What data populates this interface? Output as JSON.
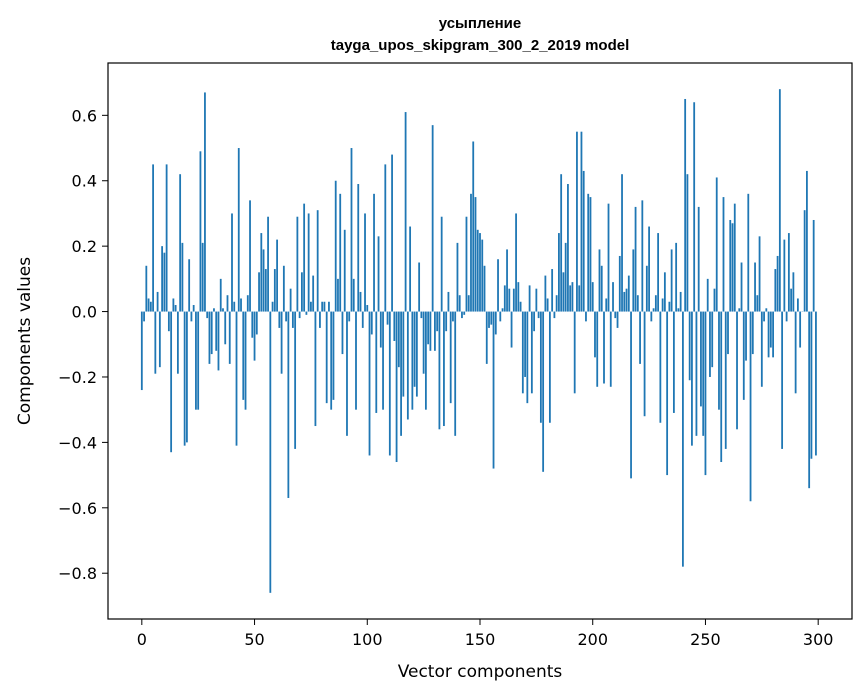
{
  "chart_data": {
    "type": "bar",
    "title": "усыпление",
    "subtitle": "tayga_upos_skipgram_300_2_2019 model",
    "xlabel": "Vector components",
    "ylabel": "Components values",
    "xlim": [
      -15,
      315
    ],
    "ylim": [
      -0.94,
      0.76
    ],
    "xticks": [
      0,
      50,
      100,
      150,
      200,
      250,
      300
    ],
    "yticks": [
      -0.8,
      -0.6,
      -0.4,
      -0.2,
      0.0,
      0.2,
      0.4,
      0.6
    ],
    "ytick_labels": [
      "−0.8",
      "−0.6",
      "−0.4",
      "−0.2",
      "0.0",
      "0.2",
      "0.4",
      "0.6"
    ],
    "xtick_labels": [
      "0",
      "50",
      "100",
      "150",
      "200",
      "250",
      "300"
    ],
    "grid": false,
    "bar_color": "#1f77b4",
    "values": [
      -0.24,
      -0.03,
      0.14,
      0.04,
      0.03,
      0.45,
      -0.19,
      0.06,
      -0.17,
      0.2,
      0.18,
      0.45,
      -0.06,
      -0.43,
      0.04,
      0.02,
      -0.19,
      0.42,
      0.21,
      -0.41,
      -0.4,
      0.16,
      -0.03,
      0.02,
      -0.3,
      -0.3,
      0.49,
      0.21,
      0.67,
      -0.02,
      -0.16,
      -0.13,
      0.01,
      -0.12,
      -0.18,
      0.1,
      0.01,
      -0.1,
      0.05,
      -0.16,
      0.3,
      0.03,
      -0.41,
      0.5,
      0.04,
      -0.27,
      -0.3,
      0.05,
      0.34,
      -0.08,
      -0.15,
      -0.07,
      0.12,
      0.24,
      0.19,
      0.13,
      0.29,
      -0.86,
      0.03,
      0.13,
      0.22,
      -0.05,
      -0.19,
      0.14,
      -0.03,
      -0.57,
      0.07,
      -0.05,
      -0.42,
      0.29,
      -0.02,
      0.12,
      0.33,
      -0.01,
      0.3,
      0.03,
      0.11,
      -0.35,
      0.31,
      -0.05,
      0.03,
      0.03,
      -0.28,
      0.03,
      -0.3,
      -0.27,
      0.4,
      0.1,
      0.36,
      -0.13,
      0.25,
      -0.38,
      -0.03,
      0.5,
      0.1,
      -0.3,
      0.39,
      0.06,
      -0.05,
      0.3,
      0.02,
      -0.44,
      -0.07,
      0.36,
      -0.31,
      0.23,
      -0.11,
      -0.3,
      0.45,
      -0.04,
      -0.44,
      0.48,
      -0.09,
      -0.46,
      -0.17,
      -0.38,
      -0.26,
      0.61,
      -0.33,
      0.26,
      -0.3,
      -0.23,
      -0.26,
      0.15,
      -0.02,
      -0.19,
      -0.3,
      -0.1,
      -0.12,
      0.57,
      -0.12,
      -0.06,
      -0.36,
      0.29,
      -0.35,
      -0.06,
      0.06,
      -0.28,
      -0.03,
      -0.38,
      0.21,
      0.05,
      -0.02,
      -0.01,
      0.29,
      0.05,
      0.36,
      0.52,
      0.35,
      0.25,
      0.24,
      0.22,
      0.14,
      -0.16,
      -0.05,
      -0.04,
      -0.48,
      -0.07,
      0.16,
      -0.03,
      0.01,
      0.08,
      0.19,
      0.07,
      -0.11,
      0.07,
      0.3,
      0.09,
      0.03,
      -0.25,
      -0.2,
      -0.28,
      0.08,
      -0.25,
      -0.06,
      0.07,
      -0.02,
      -0.34,
      -0.49,
      0.11,
      0.04,
      -0.34,
      0.13,
      -0.02,
      0.05,
      0.24,
      0.42,
      0.12,
      0.21,
      0.39,
      0.08,
      0.09,
      -0.25,
      0.55,
      0.08,
      0.55,
      0.43,
      -0.03,
      0.36,
      0.35,
      0.09,
      -0.14,
      -0.23,
      0.19,
      0.14,
      -0.22,
      0.04,
      0.33,
      -0.23,
      0.09,
      -0.02,
      -0.05,
      0.17,
      0.42,
      0.06,
      0.07,
      0.11,
      -0.51,
      0.19,
      0.32,
      0.05,
      -0.16,
      0.34,
      -0.32,
      0.14,
      0.26,
      -0.03,
      0.01,
      0.05,
      0.24,
      -0.34,
      0.04,
      0.12,
      -0.5,
      0.03,
      0.19,
      -0.31,
      0.21,
      0.01,
      0.06,
      -0.78,
      0.65,
      0.42,
      -0.21,
      -0.41,
      0.64,
      -0.38,
      0.32,
      -0.29,
      -0.38,
      -0.5,
      0.1,
      -0.2,
      -0.17,
      0.07,
      0.41,
      -0.3,
      -0.46,
      0.35,
      -0.42,
      -0.13,
      0.28,
      0.27,
      0.33,
      -0.36,
      0.01,
      0.15,
      -0.27,
      -0.15,
      0.36,
      -0.58,
      -0.13,
      0.15,
      0.05,
      0.23,
      -0.23,
      -0.03,
      0.01,
      -0.14,
      -0.11,
      -0.14,
      0.13,
      0.17,
      0.68,
      -0.42,
      0.22,
      -0.03,
      0.24,
      0.07,
      0.12,
      -0.25,
      0.04,
      -0.11,
      0.0,
      0.31,
      0.43,
      -0.54,
      -0.45,
      0.28,
      -0.44
    ]
  }
}
